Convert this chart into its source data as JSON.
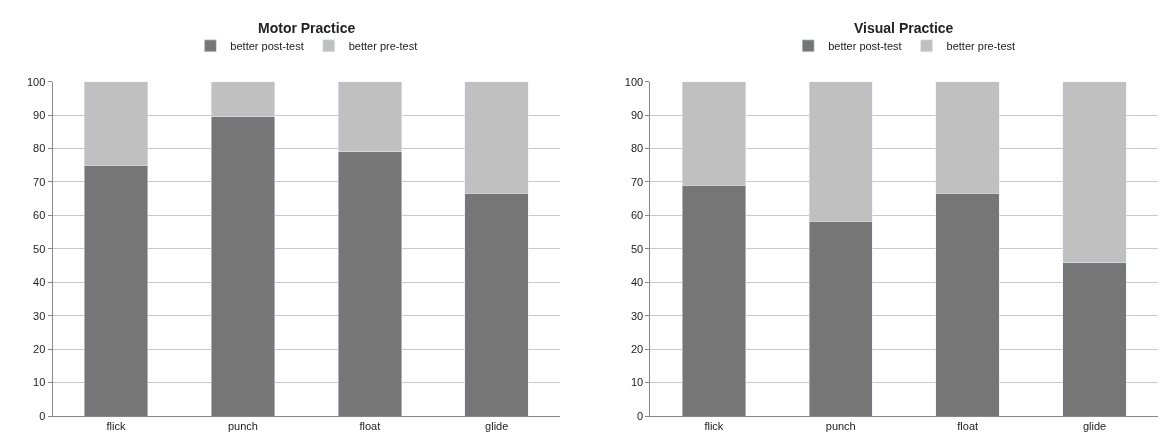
{
  "chart_data": [
    {
      "type": "bar",
      "title": "Motor Practice",
      "categories": [
        "flick",
        "punch",
        "float",
        "glide"
      ],
      "stacked": true,
      "series": [
        {
          "name": "better post-test",
          "color": "#767676",
          "values": [
            75,
            89.5,
            79,
            66.7
          ]
        },
        {
          "name": "better pre-test",
          "color": "#c0c0c0",
          "values": [
            25,
            10.5,
            21,
            33.3
          ]
        }
      ],
      "ylim": [
        0,
        100
      ],
      "yticks": [
        0,
        10,
        20,
        30,
        40,
        50,
        60,
        70,
        80,
        90,
        100
      ],
      "grid": "y",
      "legend": "top"
    },
    {
      "type": "bar",
      "title": "Visual Practice",
      "categories": [
        "flick",
        "punch",
        "float",
        "glide"
      ],
      "stacked": true,
      "series": [
        {
          "name": "better post-test",
          "color": "#767676",
          "values": [
            69,
            58.3,
            66.7,
            45.8
          ]
        },
        {
          "name": "better pre-test",
          "color": "#c0c0c0",
          "values": [
            31,
            41.7,
            33.3,
            54.2
          ]
        }
      ],
      "ylim": [
        0,
        100
      ],
      "yticks": [
        0,
        10,
        20,
        30,
        40,
        50,
        60,
        70,
        80,
        90,
        100
      ],
      "grid": "y",
      "legend": "top"
    }
  ]
}
